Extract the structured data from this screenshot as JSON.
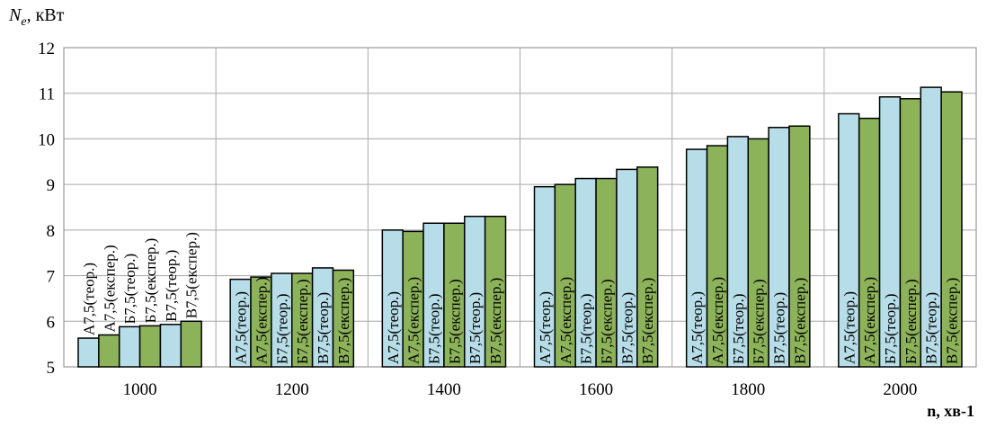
{
  "chart_data": {
    "type": "bar",
    "ylabel": {
      "symbol": "N",
      "subscript": "e",
      "unit": ", кВт"
    },
    "xlabel": "n, хв-1",
    "ylim": [
      5,
      12
    ],
    "yticks": [
      5,
      6,
      7,
      8,
      9,
      10,
      11,
      12
    ],
    "grid": true,
    "legend": "none",
    "categories": [
      "1000",
      "1200",
      "1400",
      "1600",
      "1800",
      "2000"
    ],
    "series": [
      {
        "name": "А7,5(теор.)",
        "color": "#b7dde8",
        "values": [
          5.63,
          6.92,
          8.0,
          8.95,
          9.77,
          10.55
        ]
      },
      {
        "name": "А7,5(експер.)",
        "color": "#8db35a",
        "values": [
          5.7,
          6.97,
          7.97,
          9.0,
          9.85,
          10.45
        ]
      },
      {
        "name": "Б7,5(теор.)",
        "color": "#b7dde8",
        "values": [
          5.88,
          7.05,
          8.15,
          9.13,
          10.05,
          10.92
        ]
      },
      {
        "name": "Б7,5(експер.)",
        "color": "#8db35a",
        "values": [
          5.9,
          7.05,
          8.15,
          9.13,
          10.0,
          10.88
        ]
      },
      {
        "name": "В7,5(теор.)",
        "color": "#b7dde8",
        "values": [
          5.93,
          7.17,
          8.3,
          9.33,
          10.25,
          11.13
        ]
      },
      {
        "name": "В7,5(експер.)",
        "color": "#8db35a",
        "values": [
          6.0,
          7.12,
          8.3,
          9.38,
          10.28,
          11.03
        ]
      }
    ]
  }
}
